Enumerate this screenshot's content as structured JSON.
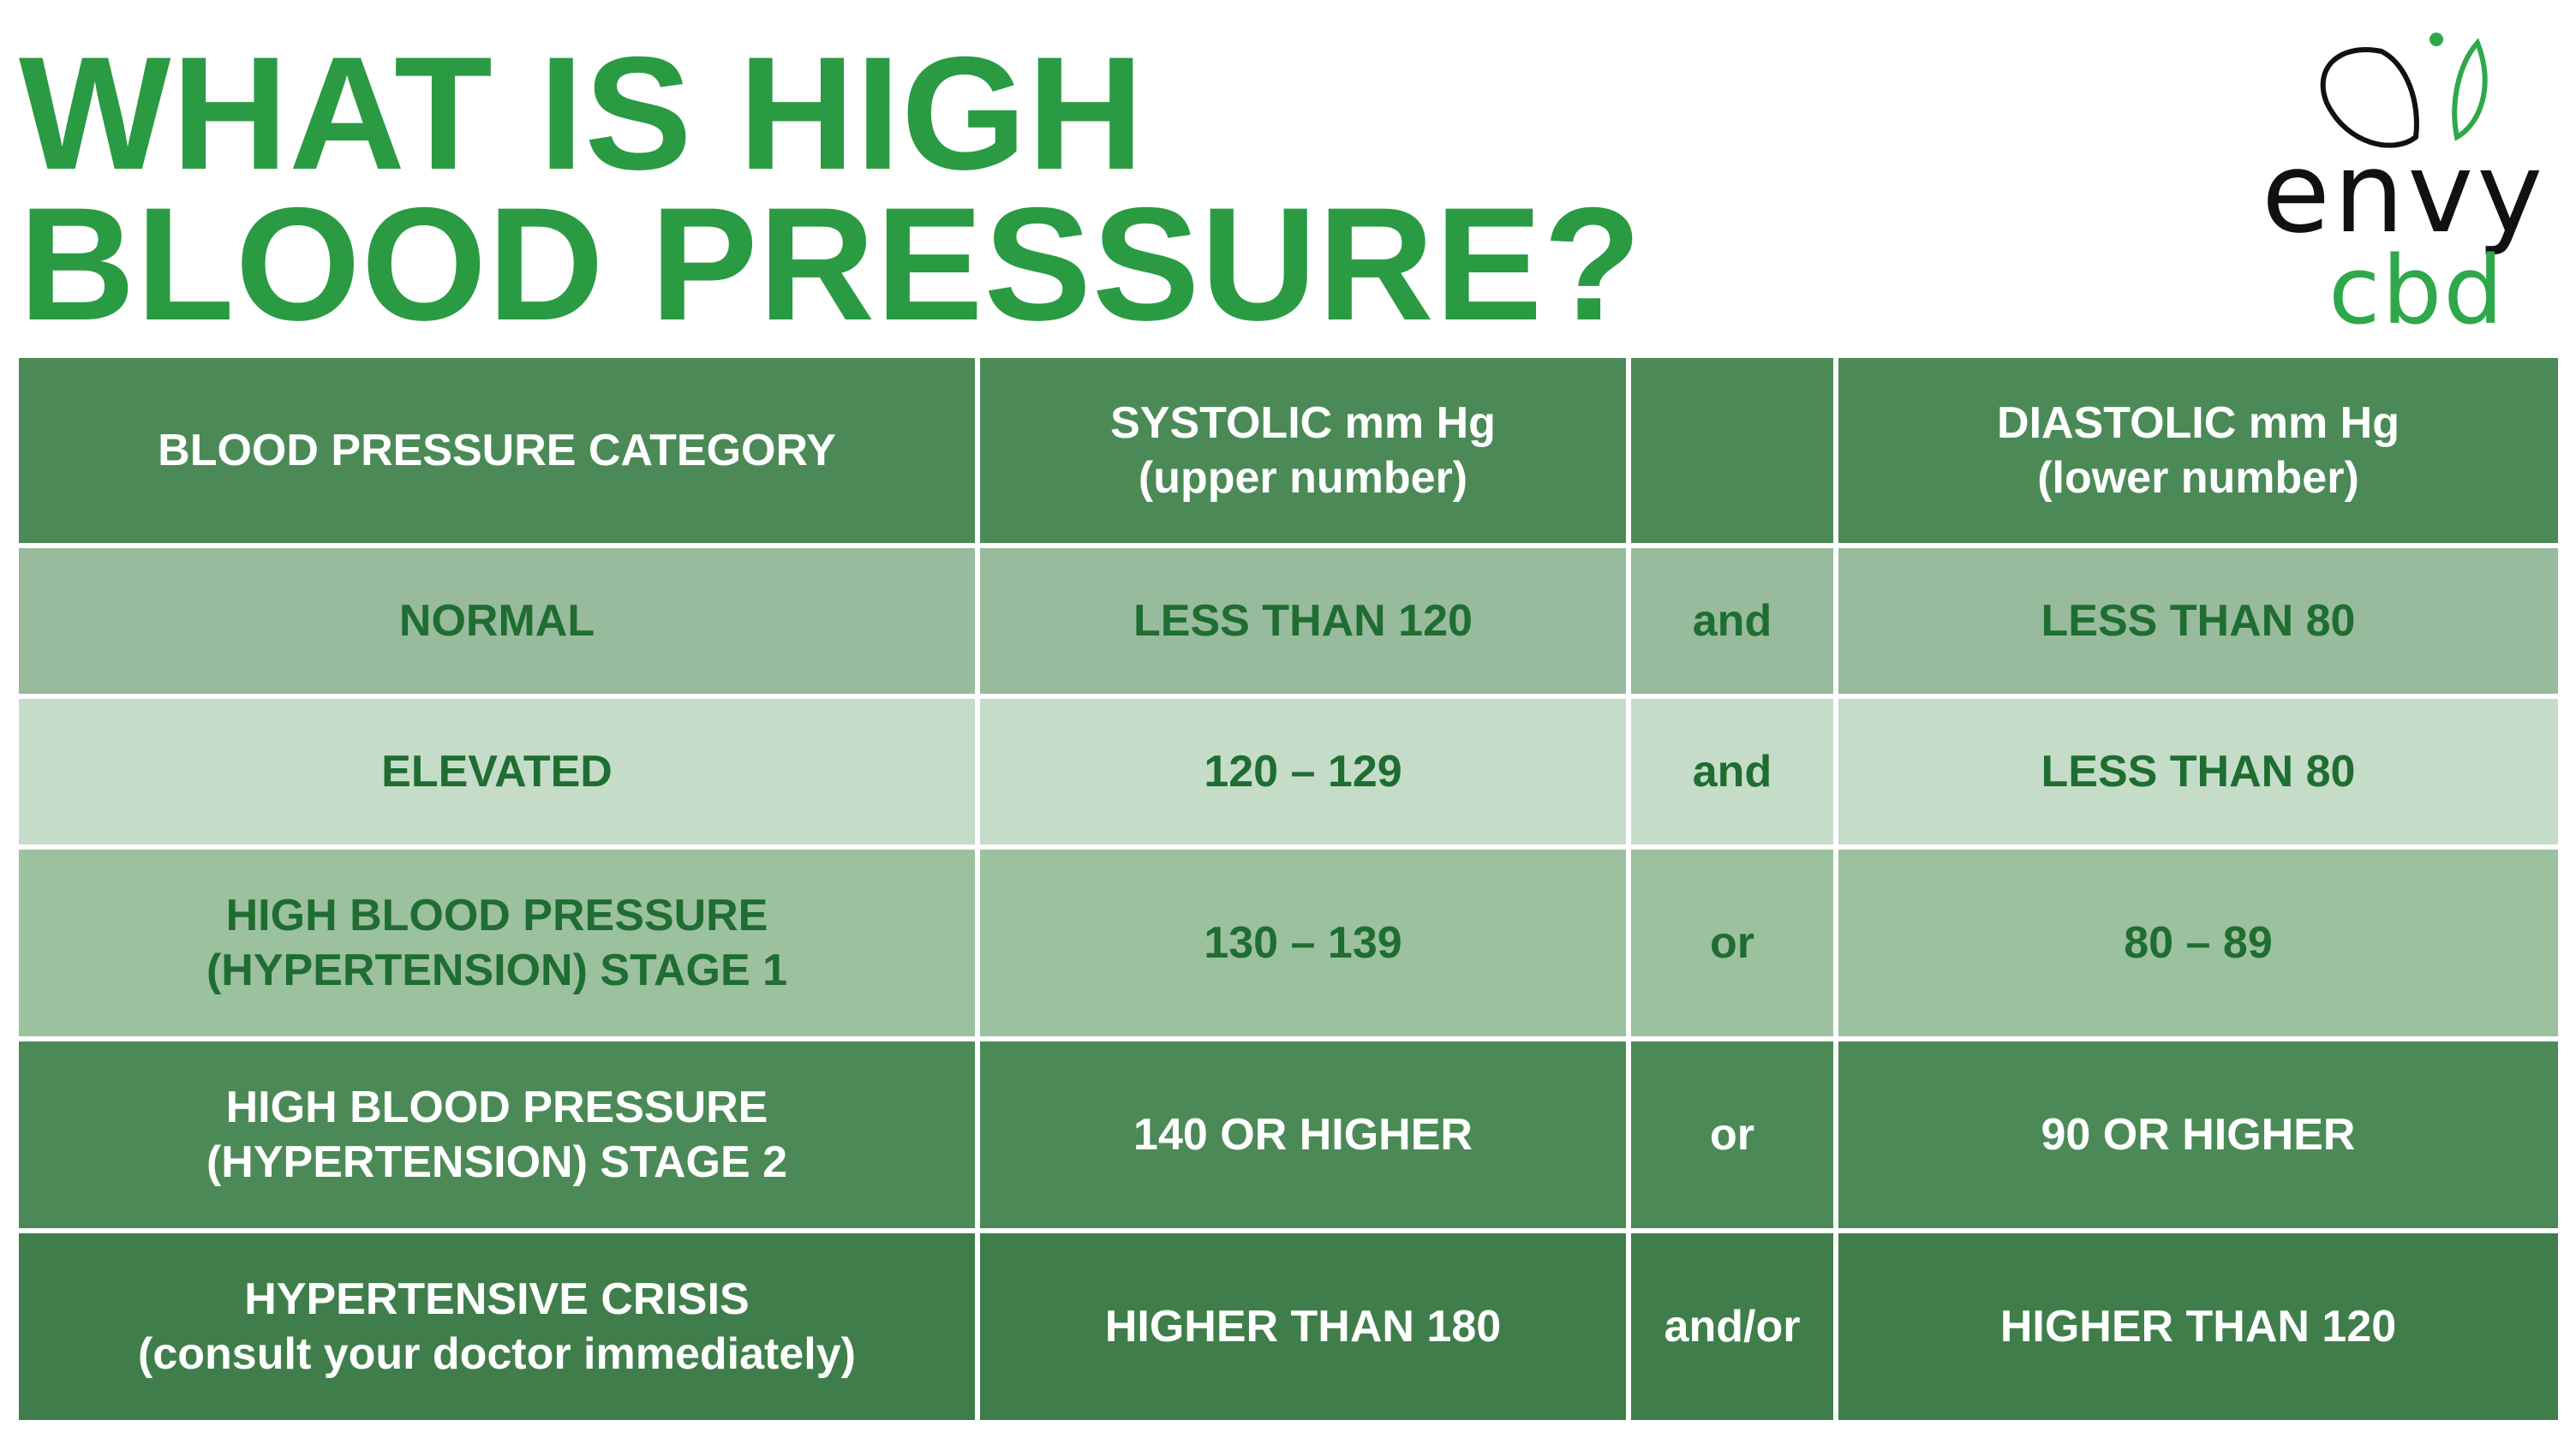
{
  "header": {
    "title_line1": "WHAT IS HIGH",
    "title_line2": "BLOOD PRESSURE?"
  },
  "logo": {
    "word1": "envy",
    "word2": "cbd",
    "icon": "leaf-icon",
    "colors": {
      "envy": "#111111",
      "cbd": "#2ea84a"
    }
  },
  "colors": {
    "title": "#2a9b43",
    "header_row": "#4b8a57",
    "normal_row": "#97bb9c",
    "elevated_row": "#c4dcc8",
    "stage1_row": "#9bc19f",
    "stage2_row": "#4b8a57",
    "crisis_row": "#3f7e4b",
    "dark_text": "#1f6d31",
    "light_text": "#ffffff"
  },
  "table": {
    "header": {
      "category": "BLOOD PRESSURE CATEGORY",
      "systolic_line1": "SYSTOLIC mm Hg",
      "systolic_line2": "(upper number)",
      "connector": "",
      "diastolic_line1": "DIASTOLIC mm Hg",
      "diastolic_line2": "(lower number)"
    },
    "rows": [
      {
        "category_line1": "NORMAL",
        "category_line2": "",
        "systolic": "LESS THAN 120",
        "connector": "and",
        "diastolic": "LESS THAN 80"
      },
      {
        "category_line1": "ELEVATED",
        "category_line2": "",
        "systolic": "120 – 129",
        "connector": "and",
        "diastolic": "LESS THAN 80"
      },
      {
        "category_line1": "HIGH BLOOD PRESSURE",
        "category_line2": "(HYPERTENSION) STAGE 1",
        "systolic": "130 – 139",
        "connector": "or",
        "diastolic": "80 – 89"
      },
      {
        "category_line1": "HIGH BLOOD PRESSURE",
        "category_line2": "(HYPERTENSION) STAGE 2",
        "systolic": "140 OR HIGHER",
        "connector": "or",
        "diastolic": "90 OR HIGHER"
      },
      {
        "category_line1": "HYPERTENSIVE CRISIS",
        "category_line2": "(consult your doctor immediately)",
        "systolic": "HIGHER THAN 180",
        "connector": "and/or",
        "diastolic": "HIGHER THAN 120"
      }
    ]
  }
}
